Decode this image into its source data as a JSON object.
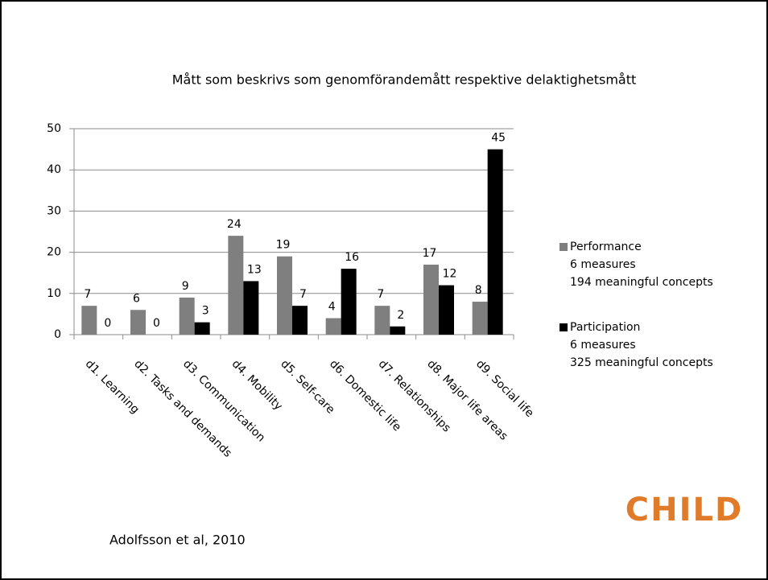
{
  "chart_data": {
    "type": "bar",
    "title": "Mått som beskrivs som genomförandemått respektive delaktighetsmått",
    "categories": [
      "d1. Learning",
      "d2. Tasks and demands",
      "d3. Communication",
      "d4. Mobility",
      "d5. Self-care",
      "d6. Domestic life",
      "d7. Relationships",
      "d8. Major life areas",
      "d9. Social life"
    ],
    "series": [
      {
        "name": "Performance",
        "description": [
          "6 measures",
          "194 meaningful concepts"
        ],
        "color": "#7f7f7f",
        "values": [
          7,
          6,
          9,
          24,
          19,
          4,
          7,
          17,
          8
        ]
      },
      {
        "name": "Participation",
        "description": [
          "6 measures",
          "325 meaningful concepts"
        ],
        "color": "#000000",
        "values": [
          0,
          0,
          3,
          13,
          7,
          16,
          2,
          12,
          45
        ]
      }
    ],
    "ylim": [
      0,
      50
    ],
    "yticks": [
      0,
      10,
      20,
      30,
      40,
      50
    ],
    "grid": true,
    "legend": "right"
  },
  "footer": {
    "citation": "Adolfsson et al, 2010",
    "logo": "CHILD"
  }
}
